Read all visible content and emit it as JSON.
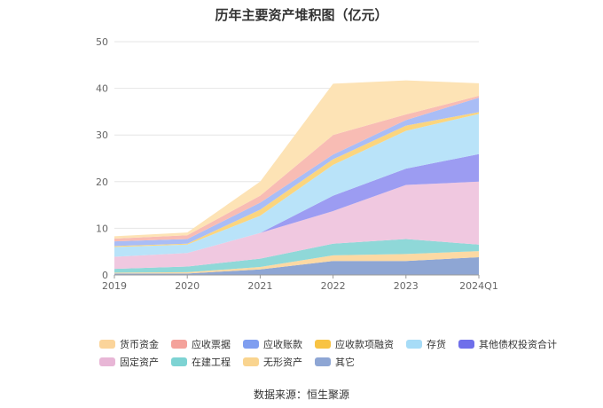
{
  "chart_data": {
    "type": "area",
    "stacked": true,
    "title": "历年主要资产堆积图（亿元）",
    "categories": [
      "2019",
      "2020",
      "2021",
      "2022",
      "2023",
      "2024Q1"
    ],
    "ylim": [
      0,
      50
    ],
    "yticks": [
      0,
      10,
      20,
      30,
      40,
      50
    ],
    "grid": true,
    "legend_position": "bottom",
    "series": [
      {
        "name": "其它",
        "color": "#8ea6d4",
        "values": [
          0.3,
          0.3,
          1.2,
          3.0,
          3.0,
          3.8
        ]
      },
      {
        "name": "无形资产",
        "color": "#fcd9a3",
        "values": [
          0.2,
          0.3,
          0.5,
          1.2,
          1.5,
          1.3
        ]
      },
      {
        "name": "在建工程",
        "color": "#8fd8d8",
        "values": [
          0.8,
          1.2,
          1.8,
          2.5,
          3.2,
          1.4
        ]
      },
      {
        "name": "固定资产",
        "color": "#f0c8e0",
        "values": [
          2.6,
          2.9,
          5.5,
          7.0,
          11.6,
          13.5
        ]
      },
      {
        "name": "其他债权投资合计",
        "color": "#9c9cf2",
        "values": [
          0.0,
          0.0,
          0.0,
          3.3,
          3.5,
          5.9
        ]
      },
      {
        "name": "存货",
        "color": "#b9e3f9",
        "values": [
          2.1,
          1.8,
          3.7,
          6.6,
          8.1,
          8.6
        ]
      },
      {
        "name": "应收款项融资",
        "color": "#fbd57e",
        "values": [
          0.2,
          0.2,
          1.3,
          1.2,
          1.1,
          0.4
        ]
      },
      {
        "name": "应收账款",
        "color": "#a9bdf6",
        "values": [
          1.0,
          1.0,
          1.5,
          1.0,
          1.2,
          3.1
        ]
      },
      {
        "name": "应收票据",
        "color": "#f8bcb4",
        "values": [
          0.6,
          0.8,
          1.5,
          4.2,
          1.2,
          0.4
        ]
      },
      {
        "name": "货币资金",
        "color": "#fde3b5",
        "values": [
          0.5,
          0.6,
          3.0,
          11.0,
          7.3,
          2.7
        ]
      }
    ]
  },
  "legend": [
    [
      {
        "label": "货币资金",
        "color": "#fbd49a"
      },
      {
        "label": "应收票据",
        "color": "#f4a29b"
      },
      {
        "label": "应收账款",
        "color": "#7f9ef0"
      },
      {
        "label": "应收款项融资",
        "color": "#f8c343"
      },
      {
        "label": "存货",
        "color": "#a7dcf7"
      },
      {
        "label": "其他债权投资合计",
        "color": "#6f6fea"
      }
    ],
    [
      {
        "label": "固定资产",
        "color": "#e8b6d6"
      },
      {
        "label": "在建工程",
        "color": "#7dd3d3"
      },
      {
        "label": "无形资产",
        "color": "#f9d48f"
      },
      {
        "label": "其它",
        "color": "#8ea6d4"
      }
    ]
  ],
  "source": "数据来源：恒生聚源"
}
